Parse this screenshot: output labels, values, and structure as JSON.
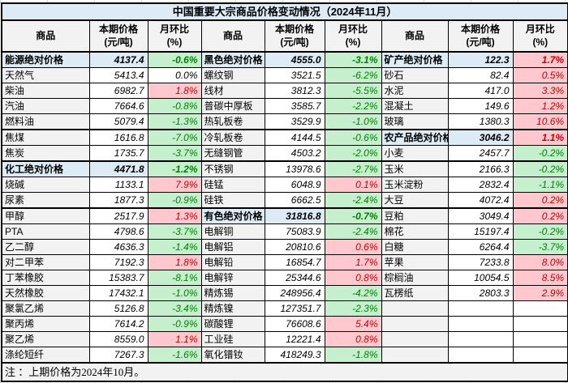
{
  "title": "中国重要大宗商品价格变动情况（2024年11月）",
  "note": "注 ：上期价格为2024年10月。",
  "columns_def": {
    "commodity": "商品",
    "price": [
      "本期价格",
      "(元/吨)"
    ],
    "mom": [
      "月环比",
      "(%)"
    ]
  },
  "colors": {
    "title_bg": "#DDEBF7",
    "category_bg": "#DDEBF7",
    "name_bg": "#F2F2F2",
    "header_bg": "#F2F2F2",
    "up_bg": "#FFC7CE",
    "up_text": "#C00000",
    "down_bg": "#C6EFCE",
    "down_text": "#008000",
    "border": "#000000"
  },
  "chart_data": {
    "type": "table",
    "title": "中国重要大宗商品价格变动情况（2024年11月）",
    "note": "注 ：上期价格为2024年10月。",
    "columns": [
      "商品",
      "本期价格(元/吨)",
      "月环比(%)"
    ],
    "layout": "3 column-groups side by side, 20 rows each; trend up=pink/red, down=green, flat=white",
    "groups": [
      {
        "rows": [
          {
            "name": "能源绝对价格",
            "price": "4137.4",
            "mom": "-0.6%",
            "trend": "down",
            "category": true
          },
          {
            "name": "天然气",
            "price": "5413.4",
            "mom": "0.0%",
            "trend": "flat"
          },
          {
            "name": "柴油",
            "price": "6982.7",
            "mom": "1.8%",
            "trend": "up"
          },
          {
            "name": "汽油",
            "price": "7664.6",
            "mom": "-0.8%",
            "trend": "down"
          },
          {
            "name": "燃料油",
            "price": "5079.4",
            "mom": "-1.3%",
            "trend": "down"
          },
          {
            "name": "焦煤",
            "price": "1616.8",
            "mom": "-7.0%",
            "trend": "down"
          },
          {
            "name": "焦炭",
            "price": "1735.7",
            "mom": "-3.7%",
            "trend": "down"
          },
          {
            "name": "化工绝对价格",
            "price": "4471.8",
            "mom": "-1.2%",
            "trend": "down",
            "category": true
          },
          {
            "name": "烧碱",
            "price": "1133.1",
            "mom": "7.9%",
            "trend": "up"
          },
          {
            "name": "尿素",
            "price": "1877.3",
            "mom": "-0.9%",
            "trend": "down"
          },
          {
            "name": "甲醇",
            "price": "2517.9",
            "mom": "1.3%",
            "trend": "up"
          },
          {
            "name": "PTA",
            "price": "4798.6",
            "mom": "-3.7%",
            "trend": "down"
          },
          {
            "name": "乙二醇",
            "price": "4636.3",
            "mom": "-1.4%",
            "trend": "down"
          },
          {
            "name": "对二甲苯",
            "price": "7192.3",
            "mom": "1.8%",
            "trend": "up"
          },
          {
            "name": "丁苯橡胶",
            "price": "15383.7",
            "mom": "-8.1%",
            "trend": "down"
          },
          {
            "name": "天然橡胶",
            "price": "17432.1",
            "mom": "-1.0%",
            "trend": "down"
          },
          {
            "name": "聚氯乙烯",
            "price": "5126.8",
            "mom": "-3.4%",
            "trend": "down"
          },
          {
            "name": "聚丙烯",
            "price": "7614.2",
            "mom": "-0.9%",
            "trend": "down"
          },
          {
            "name": "聚乙烯",
            "price": "8559.0",
            "mom": "1.1%",
            "trend": "up"
          },
          {
            "name": "涤纶短纤",
            "price": "7267.3",
            "mom": "-1.6%",
            "trend": "down"
          }
        ]
      },
      {
        "rows": [
          {
            "name": "黑色绝对价格",
            "price": "4555.0",
            "mom": "-3.1%",
            "trend": "down",
            "category": true
          },
          {
            "name": "螺纹钢",
            "price": "3521.5",
            "mom": "-6.2%",
            "trend": "down"
          },
          {
            "name": "线材",
            "price": "3812.3",
            "mom": "-5.5%",
            "trend": "down"
          },
          {
            "name": "普碳中厚板",
            "price": "3585.7",
            "mom": "-2.2%",
            "trend": "down"
          },
          {
            "name": "热轧板卷",
            "price": "3529.9",
            "mom": "-1.0%",
            "trend": "down"
          },
          {
            "name": "冷轧板卷",
            "price": "4144.5",
            "mom": "-0.6%",
            "trend": "down"
          },
          {
            "name": "无缝钢管",
            "price": "4503.2",
            "mom": "-2.0%",
            "trend": "down"
          },
          {
            "name": "不锈钢",
            "price": "13978.6",
            "mom": "-2.7%",
            "trend": "down"
          },
          {
            "name": "硅锰",
            "price": "6048.9",
            "mom": "0.1%",
            "trend": "up"
          },
          {
            "name": "硅铁",
            "price": "6662.5",
            "mom": "-2.4%",
            "trend": "down"
          },
          {
            "name": "有色绝对价格",
            "price": "31816.8",
            "mom": "-0.7%",
            "trend": "down",
            "category": true
          },
          {
            "name": "电解铜",
            "price": "75083.9",
            "mom": "-2.4%",
            "trend": "down"
          },
          {
            "name": "电解铝",
            "price": "20810.6",
            "mom": "0.6%",
            "trend": "up"
          },
          {
            "name": "电解铅",
            "price": "16854.7",
            "mom": "1.7%",
            "trend": "up"
          },
          {
            "name": "电解锌",
            "price": "25344.6",
            "mom": "0.8%",
            "trend": "up"
          },
          {
            "name": "精炼锡",
            "price": "248956.4",
            "mom": "-4.2%",
            "trend": "down"
          },
          {
            "name": "精炼镍",
            "price": "127351.7",
            "mom": "-2.3%",
            "trend": "down"
          },
          {
            "name": "碳酸锂",
            "price": "76608.6",
            "mom": "5.4%",
            "trend": "up"
          },
          {
            "name": "工业硅",
            "price": "12221.4",
            "mom": "0.8%",
            "trend": "up"
          },
          {
            "name": "氧化镨钕",
            "price": "418249.3",
            "mom": "-1.8%",
            "trend": "down"
          }
        ]
      },
      {
        "rows": [
          {
            "name": "矿产绝对价格",
            "price": "122.3",
            "mom": "1.7%",
            "trend": "up",
            "category": true
          },
          {
            "name": "砂石",
            "price": "82.4",
            "mom": "0.5%",
            "trend": "up"
          },
          {
            "name": "水泥",
            "price": "417.0",
            "mom": "3.3%",
            "trend": "up"
          },
          {
            "name": "混凝土",
            "price": "149.6",
            "mom": "1.2%",
            "trend": "up"
          },
          {
            "name": "玻璃",
            "price": "1380.3",
            "mom": "10.6%",
            "trend": "up"
          },
          {
            "name": "农产品绝对价格",
            "price": "3046.2",
            "mom": "1.1%",
            "trend": "up",
            "category": true
          },
          {
            "name": "小麦",
            "price": "2457.7",
            "mom": "-0.2%",
            "trend": "down"
          },
          {
            "name": "玉米",
            "price": "2166.3",
            "mom": "-0.2%",
            "trend": "down"
          },
          {
            "name": "玉米淀粉",
            "price": "2832.4",
            "mom": "-1.1%",
            "trend": "down"
          },
          {
            "name": "大豆",
            "price": "4072.4",
            "mom": "0.2%",
            "trend": "up"
          },
          {
            "name": "豆粕",
            "price": "3049.4",
            "mom": "0.2%",
            "trend": "up"
          },
          {
            "name": "棉花",
            "price": "15197.4",
            "mom": "-0.2%",
            "trend": "down"
          },
          {
            "name": "白糖",
            "price": "6264.4",
            "mom": "-3.7%",
            "trend": "down"
          },
          {
            "name": "苹果",
            "price": "7233.8",
            "mom": "8.0%",
            "trend": "up"
          },
          {
            "name": "棕榈油",
            "price": "10054.5",
            "mom": "8.5%",
            "trend": "up"
          },
          {
            "name": "瓦楞纸",
            "price": "2803.3",
            "mom": "2.9%",
            "trend": "up"
          },
          null,
          null,
          null,
          null
        ]
      }
    ]
  }
}
